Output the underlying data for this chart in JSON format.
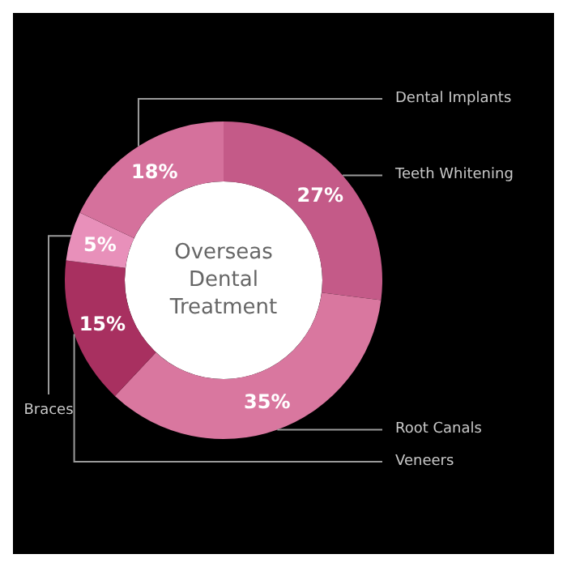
{
  "chart_data": {
    "type": "donut",
    "title": "Overseas Dental Treatment",
    "categories": [
      "Teeth Whitening",
      "Root Canals",
      "Veneers",
      "Braces",
      "Dental Implants"
    ],
    "values": [
      27,
      35,
      15,
      5,
      18
    ],
    "value_labels": [
      "27%",
      "35%",
      "15%",
      "5%",
      "18%"
    ],
    "colors": [
      "#c45a88",
      "#d9779f",
      "#a83060",
      "#e890ba",
      "#d5719c"
    ]
  }
}
